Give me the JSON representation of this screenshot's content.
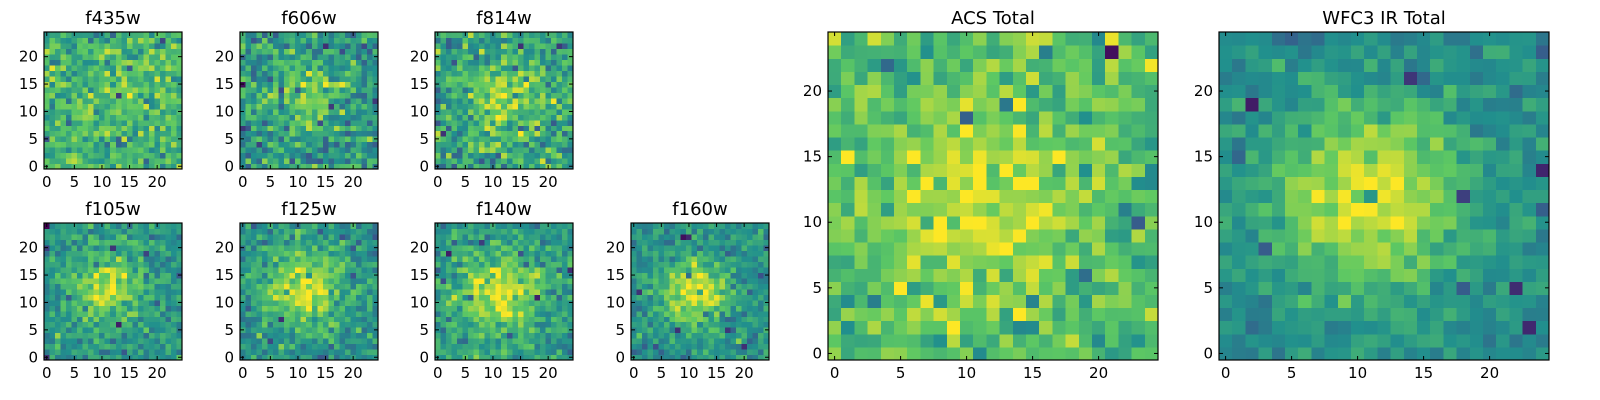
{
  "figure": {
    "colormap": "viridis",
    "colormap_stops": [
      "#440154",
      "#3b528b",
      "#21908d",
      "#5dc863",
      "#fde725"
    ]
  },
  "chart_data": [
    {
      "type": "heatmap",
      "title": "f435w",
      "xlim": [
        -0.5,
        24.5
      ],
      "ylim": [
        -0.5,
        24.5
      ],
      "xticks": [
        0,
        5,
        10,
        15,
        20
      ],
      "yticks": [
        0,
        5,
        10,
        15,
        20
      ],
      "grid_size": [
        25,
        25
      ],
      "grid": false,
      "center": [
        12,
        12
      ],
      "peak_brightness": 0.72,
      "core_width": 4.5,
      "background_level": 0.66,
      "noise": 0.12
    },
    {
      "type": "heatmap",
      "title": "f606w",
      "xlim": [
        -0.5,
        24.5
      ],
      "ylim": [
        -0.5,
        24.5
      ],
      "xticks": [
        0,
        5,
        10,
        15,
        20
      ],
      "yticks": [
        0,
        5,
        10,
        15,
        20
      ],
      "grid_size": [
        25,
        25
      ],
      "grid": false,
      "center": [
        12,
        13
      ],
      "peak_brightness": 0.8,
      "core_width": 4.2,
      "background_level": 0.55,
      "noise": 0.14
    },
    {
      "type": "heatmap",
      "title": "f814w",
      "xlim": [
        -0.5,
        24.5
      ],
      "ylim": [
        -0.5,
        24.5
      ],
      "xticks": [
        0,
        5,
        10,
        15,
        20
      ],
      "yticks": [
        0,
        5,
        10,
        15,
        20
      ],
      "grid_size": [
        25,
        25
      ],
      "grid": false,
      "center": [
        12,
        12
      ],
      "peak_brightness": 0.86,
      "core_width": 4.5,
      "background_level": 0.58,
      "noise": 0.14
    },
    {
      "type": "heatmap",
      "title": "f105w",
      "xlim": [
        -0.5,
        24.5
      ],
      "ylim": [
        -0.5,
        24.5
      ],
      "xticks": [
        0,
        5,
        10,
        15,
        20
      ],
      "yticks": [
        0,
        5,
        10,
        15,
        20
      ],
      "grid_size": [
        25,
        25
      ],
      "grid": false,
      "center": [
        11,
        13
      ],
      "peak_brightness": 0.9,
      "core_width": 4.5,
      "background_level": 0.52,
      "noise": 0.1
    },
    {
      "type": "heatmap",
      "title": "f125w",
      "xlim": [
        -0.5,
        24.5
      ],
      "ylim": [
        -0.5,
        24.5
      ],
      "xticks": [
        0,
        5,
        10,
        15,
        20
      ],
      "yticks": [
        0,
        5,
        10,
        15,
        20
      ],
      "grid_size": [
        25,
        25
      ],
      "grid": false,
      "center": [
        11,
        13
      ],
      "peak_brightness": 0.92,
      "core_width": 4.8,
      "background_level": 0.52,
      "noise": 0.1
    },
    {
      "type": "heatmap",
      "title": "f140w",
      "xlim": [
        -0.5,
        24.5
      ],
      "ylim": [
        -0.5,
        24.5
      ],
      "xticks": [
        0,
        5,
        10,
        15,
        20
      ],
      "yticks": [
        0,
        5,
        10,
        15,
        20
      ],
      "grid_size": [
        25,
        25
      ],
      "grid": false,
      "center": [
        11,
        12
      ],
      "peak_brightness": 0.94,
      "core_width": 4.8,
      "background_level": 0.55,
      "noise": 0.1
    },
    {
      "type": "heatmap",
      "title": "f160w",
      "xlim": [
        -0.5,
        24.5
      ],
      "ylim": [
        -0.5,
        24.5
      ],
      "xticks": [
        0,
        5,
        10,
        15,
        20
      ],
      "yticks": [
        0,
        5,
        10,
        15,
        20
      ],
      "grid_size": [
        25,
        25
      ],
      "grid": false,
      "center": [
        11,
        12
      ],
      "peak_brightness": 0.96,
      "core_width": 4.2,
      "background_level": 0.5,
      "noise": 0.09
    },
    {
      "type": "heatmap",
      "title": "ACS Total",
      "xlim": [
        -0.5,
        24.5
      ],
      "ylim": [
        -0.5,
        24.5
      ],
      "xticks": [
        0,
        5,
        10,
        15,
        20
      ],
      "yticks": [
        0,
        5,
        10,
        15,
        20
      ],
      "grid_size": [
        25,
        25
      ],
      "grid": false,
      "center": [
        11,
        11
      ],
      "peak_brightness": 0.95,
      "core_width": 5.5,
      "background_level": 0.68,
      "noise": 0.11
    },
    {
      "type": "heatmap",
      "title": "WFC3 IR Total",
      "xlim": [
        -0.5,
        24.5
      ],
      "ylim": [
        -0.5,
        24.5
      ],
      "xticks": [
        0,
        5,
        10,
        15,
        20
      ],
      "yticks": [
        0,
        5,
        10,
        15,
        20
      ],
      "grid_size": [
        25,
        25
      ],
      "grid": false,
      "center": [
        11,
        12
      ],
      "peak_brightness": 0.98,
      "core_width": 5.0,
      "background_level": 0.48,
      "noise": 0.07
    }
  ]
}
